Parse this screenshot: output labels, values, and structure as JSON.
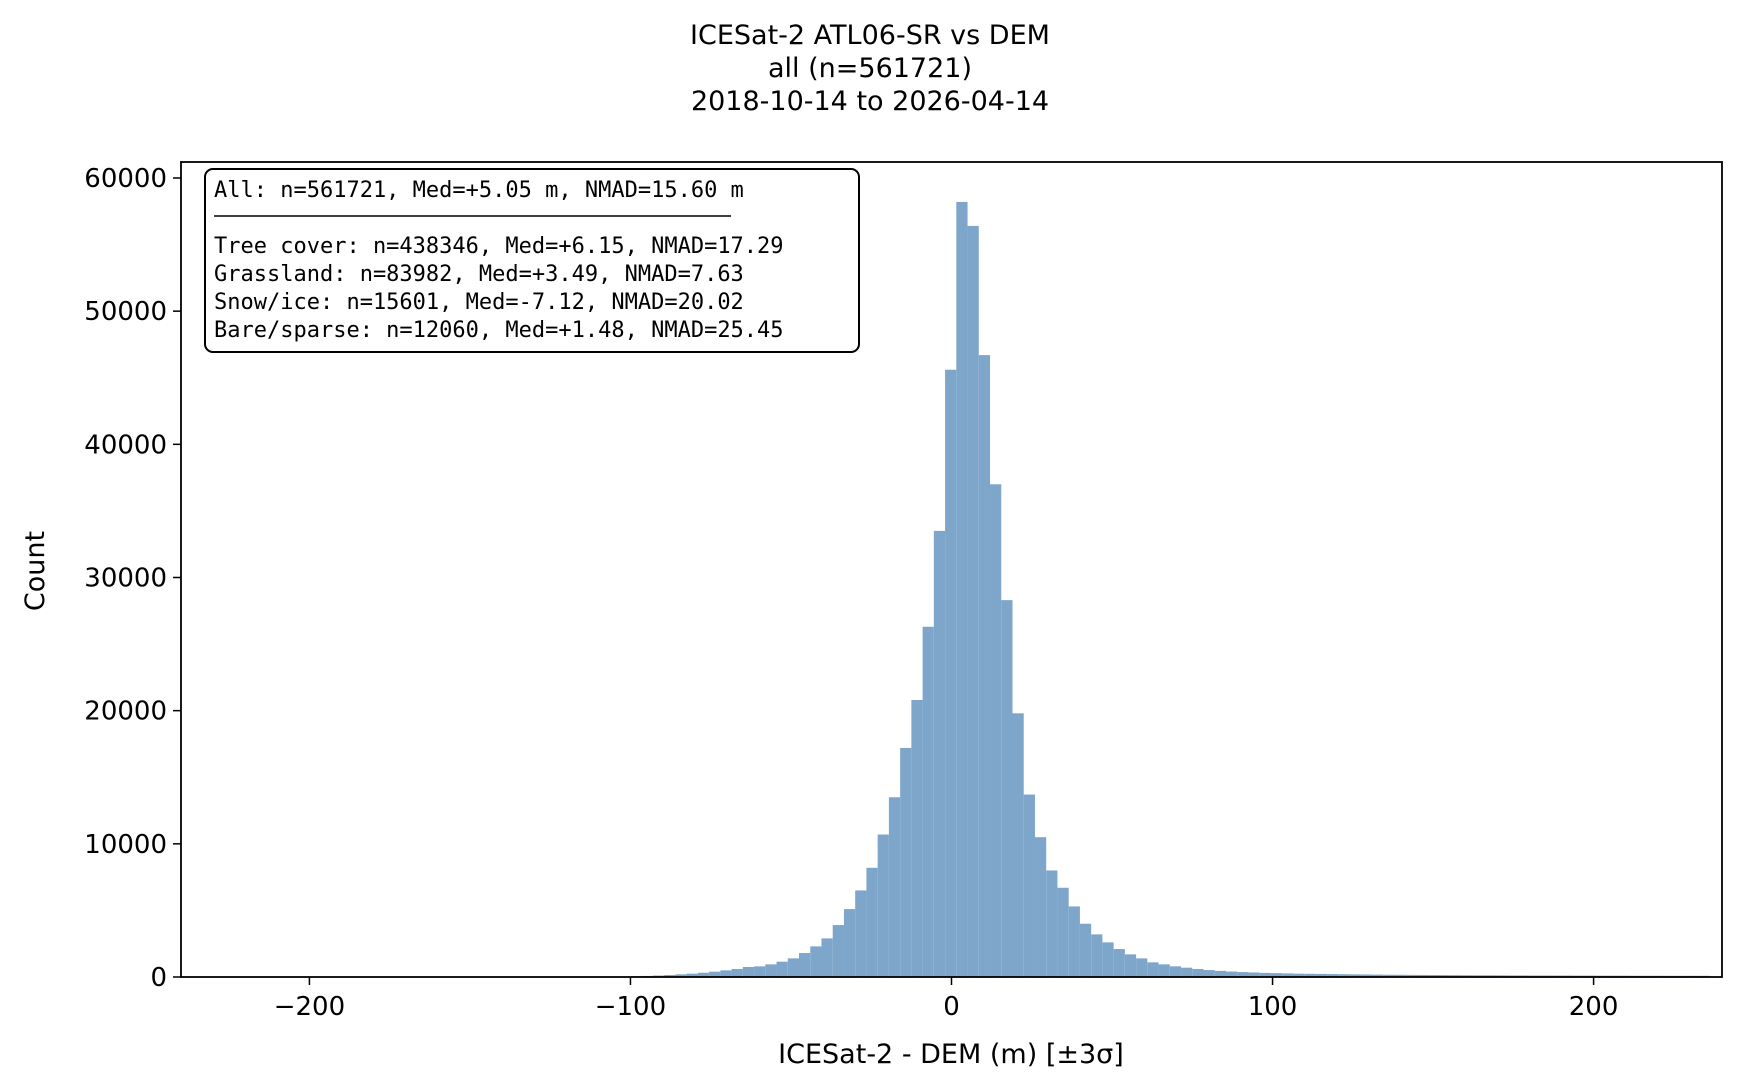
{
  "chart_data": {
    "type": "bar",
    "title_lines": [
      "ICESat-2 ATL06-SR vs DEM",
      "all (n=561721)",
      "2018-10-14 to 2026-04-14"
    ],
    "xlabel": "ICESat-2 - DEM (m) [±3σ]",
    "ylabel": "Count",
    "xlim": [
      -240,
      240
    ],
    "ylim": [
      0,
      61200
    ],
    "xticks": [
      -200,
      -100,
      0,
      100,
      200
    ],
    "xtick_labels": [
      "−200",
      "−100",
      "0",
      "100",
      "200"
    ],
    "yticks": [
      0,
      10000,
      20000,
      30000,
      40000,
      50000,
      60000
    ],
    "ytick_labels": [
      "0",
      "10000",
      "20000",
      "30000",
      "40000",
      "50000",
      "60000"
    ],
    "bar_color": "#7ea6ca",
    "bin_width": 3.5,
    "bins": {
      "x_start": [
        -100,
        -96.5,
        -93,
        -89.5,
        -86,
        -82.5,
        -79,
        -75.5,
        -72,
        -68.5,
        -65,
        -61.5,
        -58,
        -54.5,
        -51,
        -47.5,
        -44,
        -40.5,
        -37,
        -33.5,
        -30,
        -26.5,
        -23,
        -19.5,
        -16,
        -12.5,
        -9,
        -5.5,
        -2,
        1.5,
        5,
        8.5,
        12,
        15.5,
        19,
        22.5,
        26,
        29.5,
        33,
        36.5,
        40,
        43.5,
        47,
        50.5,
        54,
        57.5,
        61,
        64.5,
        68,
        71.5,
        75,
        78.5,
        82,
        85.5,
        89,
        92.5,
        96,
        99.5,
        103,
        106.5,
        110,
        113.5,
        117,
        120.5,
        124,
        127.5,
        131,
        134.5,
        138,
        141.5,
        145,
        148.5,
        152,
        155.5,
        159,
        162.5,
        166,
        169.5,
        173,
        176.5,
        180,
        183.5,
        187,
        190.5,
        194,
        197.5,
        201,
        204.5,
        208,
        211.5,
        215,
        218.5,
        222,
        225.5,
        229,
        232.5
      ],
      "counts": [
        50,
        80,
        110,
        150,
        200,
        250,
        320,
        400,
        500,
        600,
        750,
        800,
        950,
        1150,
        1400,
        1800,
        2300,
        2900,
        3900,
        5100,
        6500,
        8200,
        10700,
        13500,
        17200,
        20800,
        26300,
        33500,
        45600,
        58200,
        56400,
        46700,
        37000,
        28300,
        19800,
        13700,
        10500,
        8000,
        6700,
        5300,
        4000,
        3200,
        2600,
        2100,
        1700,
        1400,
        1100,
        950,
        800,
        700,
        600,
        520,
        460,
        410,
        370,
        340,
        310,
        290,
        270,
        250,
        240,
        230,
        220,
        210,
        200,
        190,
        180,
        170,
        165,
        160,
        155,
        150,
        145,
        140,
        135,
        130,
        130,
        125,
        120,
        120,
        115,
        115,
        110,
        110,
        105,
        105,
        100,
        100,
        100,
        95,
        95,
        95,
        90,
        90,
        90,
        90
      ]
    }
  },
  "legend_box": {
    "header": "All: n=561721, Med=+5.05 m, NMAD=15.60 m",
    "lines": [
      "Tree cover: n=438346, Med=+6.15, NMAD=17.29",
      "Grassland: n=83982, Med=+3.49, NMAD=7.63",
      "Snow/ice: n=15601, Med=-7.12, NMAD=20.02",
      "Bare/sparse: n=12060, Med=+1.48, NMAD=25.45"
    ]
  }
}
